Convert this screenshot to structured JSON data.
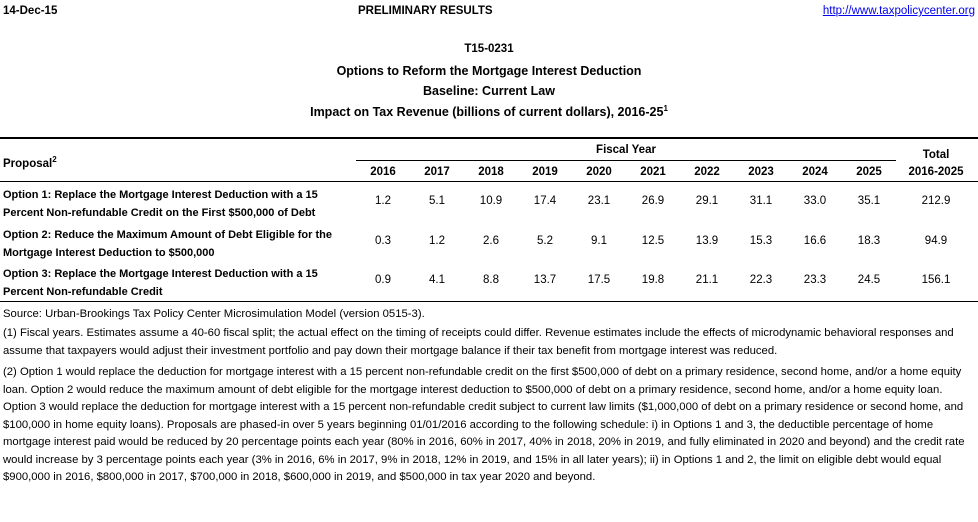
{
  "header": {
    "date": "14-Dec-15",
    "status": "PRELIMINARY RESULTS",
    "url": "http://www.taxpolicycenter.org"
  },
  "title": {
    "id": "T15-0231",
    "main": "Options to Reform the Mortgage Interest Deduction",
    "baseline": "Baseline: Current Law",
    "impact": "Impact on Tax Revenue (billions of current dollars), 2016-25",
    "impact_note": "1"
  },
  "table": {
    "proposal_header": "Proposal",
    "proposal_note": "2",
    "group_header": "Fiscal Year",
    "years": [
      "2016",
      "2017",
      "2018",
      "2019",
      "2020",
      "2021",
      "2022",
      "2023",
      "2024",
      "2025"
    ],
    "total_header": [
      "Total",
      "2016-2025"
    ],
    "rows": [
      {
        "label": "Option 1: Replace the Mortgage Interest Deduction with a 15 Percent Non-refundable Credit on the First $500,000 of Debt",
        "values": [
          "1.2",
          "5.1",
          "10.9",
          "17.4",
          "23.1",
          "26.9",
          "29.1",
          "31.1",
          "33.0",
          "35.1"
        ],
        "total": "212.9"
      },
      {
        "label": "Option 2: Reduce the Maximum Amount of Debt Eligible for the Mortgage Interest Deduction to $500,000",
        "values": [
          "0.3",
          "1.2",
          "2.6",
          "5.2",
          "9.1",
          "12.5",
          "13.9",
          "15.3",
          "16.6",
          "18.3"
        ],
        "total": "94.9"
      },
      {
        "label": "Option 3: Replace the Mortgage Interest Deduction with a 15 Percent Non-refundable Credit",
        "values": [
          "0.9",
          "4.1",
          "8.8",
          "13.7",
          "17.5",
          "19.8",
          "21.1",
          "22.3",
          "23.3",
          "24.5"
        ],
        "total": "156.1"
      }
    ]
  },
  "notes": [
    "Source: Urban-Brookings Tax Policy Center Microsimulation Model (version 0515-3).",
    "(1) Fiscal years. Estimates assume a 40-60 fiscal split; the actual effect on the timing of receipts could differ. Revenue estimates include the effects of microdynamic behavioral responses and assume that taxpayers would adjust their investment portfolio and pay down their mortgage balance if their tax benefit from mortgage interest was reduced.",
    "(2) Option 1 would replace the deduction for mortgage interest with a 15 percent non-refundable credit on the first $500,000 of debt on a primary residence, second home, and/or a home equity loan. Option 2 would reduce the maximum amount of debt eligible for the mortgage interest deduction to $500,000 of debt on a primary residence, second home, and/or a home equity loan. Option 3 would replace the deduction for mortgage interest with a 15 percent non-refundable credit subject to current law limits ($1,000,000 of debt on a primary residence or second home, and $100,000 in home equity loans). Proposals are phased-in over 5 years beginning 01/01/2016 according to the following schedule: i) in Options 1 and 3, the deductible percentage of home mortgage interest paid would be reduced by 20 percentage points each year (80% in 2016, 60% in 2017, 40% in 2018, 20% in 2019, and fully eliminated in 2020 and beyond) and the credit rate would increase by 3 percentage points each year (3% in 2016, 6% in 2017, 9% in 2018, 12% in 2019, and 15% in all later years); ii) in Options 1 and 2, the limit on eligible debt would equal $900,000 in 2016, $800,000 in 2017, $700,000 in 2018, $600,000 in 2019, and $500,000 in tax year 2020 and beyond."
  ]
}
